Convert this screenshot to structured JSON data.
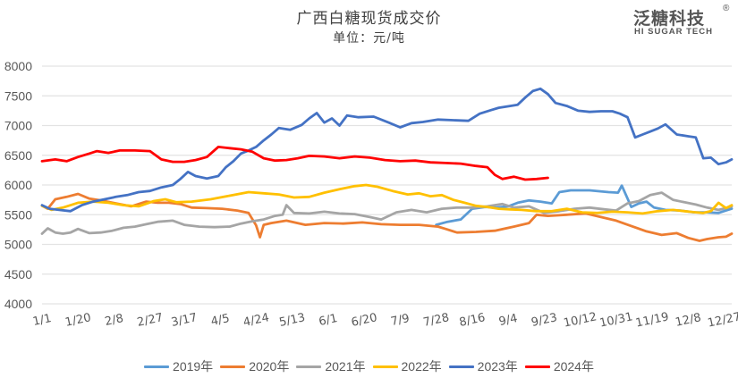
{
  "header": {
    "title": "广西白糖现货成交价",
    "subtitle": "单位：元/吨"
  },
  "logo": {
    "name": "泛糖科技",
    "registered": "®",
    "tagline": "HI SUGAR TECH"
  },
  "chart_data": {
    "type": "line",
    "title": "广西白糖现货成交价",
    "subtitle": "单位：元/吨",
    "xlabel": "",
    "ylabel": "",
    "ylim": [
      4000,
      8000
    ],
    "yticks": [
      "8000",
      "7500",
      "7000",
      "6500",
      "6000",
      "5500",
      "5000",
      "4500",
      "4000"
    ],
    "xlim": [
      1,
      365
    ],
    "xtick_labels": [
      "1/1",
      "1/20",
      "2/8",
      "2/27",
      "3/17",
      "4/5",
      "4/24",
      "5/13",
      "6/1",
      "6/20",
      "7/9",
      "7/28",
      "8/16",
      "9/4",
      "9/23",
      "10/12",
      "10/31",
      "11/19",
      "12/8",
      "12/27"
    ],
    "xtick_days": [
      1,
      20,
      39,
      58,
      76,
      95,
      114,
      133,
      152,
      171,
      190,
      209,
      228,
      247,
      266,
      285,
      304,
      323,
      342,
      361
    ],
    "grid": true,
    "legend_position": "bottom",
    "series": [
      {
        "name": "2019年",
        "color": "#5B9BD5",
        "x": [
          209,
          215,
          222,
          228,
          235,
          241,
          247,
          252,
          258,
          264,
          270,
          274,
          280,
          290,
          300,
          305,
          307,
          312,
          316,
          320,
          324,
          330,
          338,
          345,
          352,
          358,
          362,
          365
        ],
        "y": [
          5330,
          5380,
          5420,
          5600,
          5630,
          5620,
          5640,
          5700,
          5740,
          5720,
          5690,
          5880,
          5910,
          5910,
          5880,
          5870,
          5990,
          5630,
          5690,
          5720,
          5620,
          5580,
          5570,
          5540,
          5540,
          5530,
          5570,
          5600
        ]
      },
      {
        "name": "2020年",
        "color": "#ED7D31",
        "x": [
          1,
          4,
          8,
          14,
          20,
          26,
          32,
          40,
          48,
          56,
          62,
          68,
          74,
          80,
          88,
          96,
          104,
          110,
          114,
          116,
          118,
          122,
          130,
          140,
          150,
          160,
          170,
          180,
          190,
          200,
          210,
          214,
          220,
          230,
          240,
          250,
          258,
          262,
          268,
          278,
          288,
          296,
          304,
          312,
          320,
          328,
          336,
          342,
          348,
          352,
          358,
          362,
          365
        ],
        "y": [
          5650,
          5600,
          5760,
          5800,
          5850,
          5770,
          5740,
          5690,
          5640,
          5720,
          5700,
          5700,
          5680,
          5620,
          5610,
          5600,
          5570,
          5530,
          5320,
          5120,
          5330,
          5360,
          5400,
          5330,
          5360,
          5350,
          5370,
          5340,
          5330,
          5330,
          5300,
          5260,
          5200,
          5210,
          5230,
          5300,
          5360,
          5500,
          5480,
          5500,
          5520,
          5460,
          5400,
          5310,
          5220,
          5160,
          5190,
          5110,
          5060,
          5090,
          5120,
          5130,
          5180
        ]
      },
      {
        "name": "2021年",
        "color": "#A5A5A5",
        "x": [
          1,
          4,
          8,
          12,
          16,
          20,
          26,
          32,
          38,
          44,
          50,
          56,
          62,
          70,
          76,
          84,
          92,
          100,
          106,
          112,
          118,
          124,
          128,
          130,
          134,
          142,
          150,
          158,
          166,
          174,
          180,
          188,
          196,
          204,
          212,
          220,
          228,
          236,
          244,
          250,
          258,
          266,
          274,
          282,
          290,
          298,
          304,
          310,
          316,
          322,
          328,
          334,
          340,
          346,
          352,
          358,
          362,
          365
        ],
        "y": [
          5180,
          5270,
          5200,
          5180,
          5200,
          5260,
          5190,
          5200,
          5230,
          5280,
          5300,
          5340,
          5380,
          5400,
          5330,
          5300,
          5290,
          5300,
          5350,
          5390,
          5420,
          5480,
          5500,
          5660,
          5530,
          5520,
          5550,
          5520,
          5510,
          5460,
          5420,
          5540,
          5580,
          5540,
          5600,
          5620,
          5620,
          5640,
          5680,
          5620,
          5640,
          5530,
          5560,
          5600,
          5620,
          5590,
          5570,
          5690,
          5730,
          5830,
          5870,
          5750,
          5710,
          5670,
          5620,
          5580,
          5610,
          5640
        ]
      },
      {
        "name": "2022年",
        "color": "#FFC000",
        "x": [
          1,
          6,
          12,
          20,
          28,
          36,
          44,
          52,
          60,
          66,
          72,
          80,
          90,
          100,
          110,
          118,
          126,
          134,
          142,
          150,
          158,
          166,
          172,
          178,
          186,
          194,
          200,
          206,
          212,
          218,
          224,
          230,
          236,
          242,
          248,
          254,
          262,
          270,
          278,
          286,
          294,
          302,
          310,
          318,
          326,
          334,
          340,
          346,
          350,
          354,
          358,
          362,
          365
        ],
        "y": [
          5650,
          5580,
          5620,
          5700,
          5720,
          5700,
          5660,
          5640,
          5730,
          5760,
          5710,
          5720,
          5760,
          5820,
          5880,
          5860,
          5840,
          5790,
          5800,
          5870,
          5930,
          5980,
          6000,
          5970,
          5900,
          5840,
          5860,
          5810,
          5830,
          5750,
          5700,
          5650,
          5630,
          5600,
          5590,
          5580,
          5560,
          5560,
          5600,
          5540,
          5530,
          5550,
          5540,
          5520,
          5560,
          5580,
          5560,
          5540,
          5530,
          5560,
          5700,
          5610,
          5660
        ]
      },
      {
        "name": "2023年",
        "color": "#4472C4",
        "x": [
          1,
          5,
          10,
          16,
          22,
          28,
          34,
          40,
          46,
          52,
          58,
          64,
          70,
          74,
          78,
          82,
          88,
          94,
          98,
          102,
          106,
          110,
          114,
          118,
          122,
          126,
          132,
          138,
          142,
          146,
          150,
          154,
          158,
          162,
          168,
          176,
          184,
          190,
          196,
          202,
          210,
          218,
          226,
          232,
          238,
          242,
          248,
          252,
          256,
          260,
          264,
          268,
          272,
          278,
          284,
          290,
          296,
          302,
          306,
          310,
          314,
          318,
          322,
          326,
          330,
          336,
          342,
          346,
          350,
          354,
          358,
          362,
          365
        ],
        "y": [
          5660,
          5600,
          5580,
          5560,
          5660,
          5720,
          5760,
          5800,
          5830,
          5880,
          5900,
          5960,
          6000,
          6100,
          6220,
          6150,
          6110,
          6150,
          6300,
          6400,
          6530,
          6580,
          6640,
          6750,
          6850,
          6960,
          6930,
          7010,
          7120,
          7210,
          7050,
          7120,
          7000,
          7170,
          7140,
          7150,
          7050,
          6970,
          7040,
          7060,
          7100,
          7090,
          7080,
          7200,
          7260,
          7300,
          7330,
          7350,
          7470,
          7580,
          7620,
          7530,
          7380,
          7330,
          7250,
          7230,
          7240,
          7240,
          7200,
          7140,
          6800,
          6850,
          6900,
          6950,
          7020,
          6850,
          6820,
          6800,
          6450,
          6460,
          6350,
          6380,
          6430
        ]
      },
      {
        "name": "2024年",
        "color": "#FF0000",
        "x": [
          1,
          8,
          14,
          20,
          26,
          30,
          36,
          42,
          50,
          58,
          64,
          70,
          76,
          82,
          88,
          94,
          100,
          106,
          112,
          118,
          124,
          130,
          136,
          142,
          150,
          158,
          166,
          174,
          182,
          190,
          198,
          206,
          214,
          222,
          230,
          236,
          240,
          244,
          250,
          256,
          262,
          268
        ],
        "y": [
          6400,
          6430,
          6400,
          6470,
          6530,
          6570,
          6540,
          6580,
          6580,
          6570,
          6430,
          6390,
          6390,
          6420,
          6470,
          6640,
          6620,
          6600,
          6560,
          6450,
          6410,
          6420,
          6450,
          6490,
          6480,
          6450,
          6480,
          6460,
          6420,
          6400,
          6410,
          6380,
          6370,
          6360,
          6320,
          6300,
          6170,
          6100,
          6140,
          6090,
          6100,
          6120
        ]
      }
    ]
  }
}
